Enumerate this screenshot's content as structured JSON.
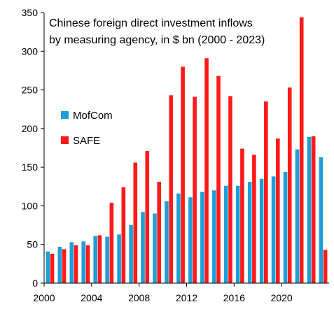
{
  "chart_data": {
    "type": "bar",
    "title_lines": [
      "Chinese foreign direct investment inflows",
      "by measuring agency, in $ bn (2000 - 2023)"
    ],
    "xlabel": "",
    "ylabel": "",
    "ylim": [
      0,
      350
    ],
    "yticks": [
      0,
      50,
      100,
      150,
      200,
      250,
      300,
      350
    ],
    "x_tick_labels": [
      "2000",
      "2004",
      "2008",
      "2012",
      "2016",
      "2020"
    ],
    "categories": [
      "2000",
      "2001",
      "2002",
      "2003",
      "2004",
      "2005",
      "2006",
      "2007",
      "2008",
      "2009",
      "2010",
      "2011",
      "2012",
      "2013",
      "2014",
      "2015",
      "2016",
      "2017",
      "2018",
      "2019",
      "2020",
      "2021",
      "2022",
      "2023"
    ],
    "series": [
      {
        "name": "MofCom",
        "color": "#1E9FD8",
        "values": [
          41,
          47,
          53,
          54,
          61,
          60,
          63,
          75,
          92,
          90,
          106,
          116,
          111,
          118,
          120,
          126,
          126,
          131,
          135,
          138,
          144,
          173,
          189,
          163
        ]
      },
      {
        "name": "SAFE",
        "color": "#FF1A1A",
        "values": [
          38,
          44,
          49,
          49,
          62,
          104,
          124,
          156,
          171,
          131,
          243,
          280,
          241,
          291,
          268,
          242,
          174,
          166,
          235,
          187,
          253,
          344,
          190,
          43
        ]
      }
    ],
    "legend_position": "left",
    "grid": false
  }
}
